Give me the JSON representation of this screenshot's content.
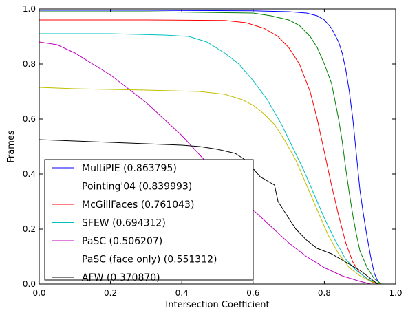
{
  "chart_data": {
    "type": "line",
    "title": "",
    "xlabel": "Intersection Coefficient",
    "ylabel": "Frames",
    "xlim": [
      0,
      1
    ],
    "ylim": [
      0,
      1
    ],
    "xticks": [
      "0.0",
      "0.2",
      "0.4",
      "0.6",
      "0.8",
      "1.0"
    ],
    "yticks": [
      "0.0",
      "0.2",
      "0.4",
      "0.6",
      "0.8",
      "1.0"
    ],
    "grid": false,
    "legend_position": "lower-left",
    "series": [
      {
        "name": "MultiPIE (0.863795)",
        "color": "#0000ff",
        "points": [
          [
            0,
            0.995
          ],
          [
            0.3,
            0.995
          ],
          [
            0.6,
            0.993
          ],
          [
            0.7,
            0.99
          ],
          [
            0.75,
            0.985
          ],
          [
            0.78,
            0.975
          ],
          [
            0.8,
            0.96
          ],
          [
            0.82,
            0.93
          ],
          [
            0.84,
            0.88
          ],
          [
            0.85,
            0.84
          ],
          [
            0.86,
            0.78
          ],
          [
            0.87,
            0.7
          ],
          [
            0.88,
            0.6
          ],
          [
            0.89,
            0.47
          ],
          [
            0.9,
            0.34
          ],
          [
            0.91,
            0.25
          ],
          [
            0.92,
            0.17
          ],
          [
            0.93,
            0.1
          ],
          [
            0.94,
            0.04
          ],
          [
            0.95,
            0.01
          ],
          [
            0.96,
            0
          ]
        ]
      },
      {
        "name": "Pointing'04 (0.839993)",
        "color": "#008000",
        "points": [
          [
            0,
            0.99
          ],
          [
            0.3,
            0.99
          ],
          [
            0.6,
            0.985
          ],
          [
            0.65,
            0.975
          ],
          [
            0.7,
            0.96
          ],
          [
            0.73,
            0.94
          ],
          [
            0.76,
            0.9
          ],
          [
            0.78,
            0.86
          ],
          [
            0.8,
            0.8
          ],
          [
            0.82,
            0.73
          ],
          [
            0.84,
            0.6
          ],
          [
            0.85,
            0.52
          ],
          [
            0.86,
            0.42
          ],
          [
            0.87,
            0.33
          ],
          [
            0.88,
            0.25
          ],
          [
            0.89,
            0.18
          ],
          [
            0.9,
            0.12
          ],
          [
            0.92,
            0.06
          ],
          [
            0.94,
            0.02
          ],
          [
            0.96,
            0
          ]
        ]
      },
      {
        "name": "McGillFaces (0.761043)",
        "color": "#ff0000",
        "points": [
          [
            0,
            0.96
          ],
          [
            0.3,
            0.96
          ],
          [
            0.52,
            0.958
          ],
          [
            0.58,
            0.95
          ],
          [
            0.63,
            0.93
          ],
          [
            0.67,
            0.9
          ],
          [
            0.7,
            0.86
          ],
          [
            0.73,
            0.8
          ],
          [
            0.76,
            0.7
          ],
          [
            0.78,
            0.6
          ],
          [
            0.8,
            0.48
          ],
          [
            0.82,
            0.36
          ],
          [
            0.84,
            0.25
          ],
          [
            0.86,
            0.15
          ],
          [
            0.88,
            0.08
          ],
          [
            0.9,
            0.04
          ],
          [
            0.93,
            0.01
          ],
          [
            0.95,
            0
          ]
        ]
      },
      {
        "name": "SFEW (0.694312)",
        "color": "#00bfbf",
        "points": [
          [
            0,
            0.91
          ],
          [
            0.2,
            0.91
          ],
          [
            0.35,
            0.905
          ],
          [
            0.42,
            0.9
          ],
          [
            0.47,
            0.88
          ],
          [
            0.52,
            0.84
          ],
          [
            0.56,
            0.8
          ],
          [
            0.6,
            0.74
          ],
          [
            0.64,
            0.67
          ],
          [
            0.68,
            0.58
          ],
          [
            0.71,
            0.5
          ],
          [
            0.74,
            0.42
          ],
          [
            0.77,
            0.33
          ],
          [
            0.8,
            0.24
          ],
          [
            0.83,
            0.16
          ],
          [
            0.86,
            0.09
          ],
          [
            0.89,
            0.05
          ],
          [
            0.92,
            0.02
          ],
          [
            0.95,
            0
          ]
        ]
      },
      {
        "name": "PaSC (0.506207)",
        "color": "#bf00bf",
        "points": [
          [
            0,
            0.88
          ],
          [
            0.05,
            0.87
          ],
          [
            0.1,
            0.84
          ],
          [
            0.15,
            0.8
          ],
          [
            0.2,
            0.76
          ],
          [
            0.25,
            0.71
          ],
          [
            0.3,
            0.66
          ],
          [
            0.35,
            0.6
          ],
          [
            0.4,
            0.54
          ],
          [
            0.45,
            0.47
          ],
          [
            0.5,
            0.4
          ],
          [
            0.55,
            0.33
          ],
          [
            0.6,
            0.27
          ],
          [
            0.65,
            0.21
          ],
          [
            0.7,
            0.15
          ],
          [
            0.75,
            0.1
          ],
          [
            0.8,
            0.06
          ],
          [
            0.85,
            0.03
          ],
          [
            0.9,
            0.01
          ],
          [
            0.93,
            0
          ]
        ]
      },
      {
        "name": "PaSC (face only) (0.551312)",
        "color": "#bfbf00",
        "points": [
          [
            0,
            0.715
          ],
          [
            0.1,
            0.71
          ],
          [
            0.3,
            0.705
          ],
          [
            0.45,
            0.7
          ],
          [
            0.52,
            0.69
          ],
          [
            0.57,
            0.67
          ],
          [
            0.6,
            0.65
          ],
          [
            0.63,
            0.62
          ],
          [
            0.66,
            0.58
          ],
          [
            0.69,
            0.52
          ],
          [
            0.72,
            0.45
          ],
          [
            0.75,
            0.36
          ],
          [
            0.78,
            0.27
          ],
          [
            0.81,
            0.18
          ],
          [
            0.84,
            0.11
          ],
          [
            0.87,
            0.06
          ],
          [
            0.9,
            0.03
          ],
          [
            0.93,
            0.01
          ],
          [
            0.96,
            0
          ]
        ]
      },
      {
        "name": "AFW (0.370870)",
        "color": "#000000",
        "points": [
          [
            0,
            0.525
          ],
          [
            0.1,
            0.52
          ],
          [
            0.2,
            0.515
          ],
          [
            0.3,
            0.51
          ],
          [
            0.4,
            0.505
          ],
          [
            0.45,
            0.5
          ],
          [
            0.5,
            0.49
          ],
          [
            0.55,
            0.475
          ],
          [
            0.58,
            0.45
          ],
          [
            0.6,
            0.42
          ],
          [
            0.62,
            0.39
          ],
          [
            0.64,
            0.375
          ],
          [
            0.66,
            0.36
          ],
          [
            0.67,
            0.3
          ],
          [
            0.69,
            0.26
          ],
          [
            0.72,
            0.2
          ],
          [
            0.75,
            0.16
          ],
          [
            0.78,
            0.13
          ],
          [
            0.82,
            0.11
          ],
          [
            0.86,
            0.08
          ],
          [
            0.9,
            0.05
          ],
          [
            0.93,
            0.02
          ],
          [
            0.95,
            0
          ]
        ]
      }
    ]
  }
}
